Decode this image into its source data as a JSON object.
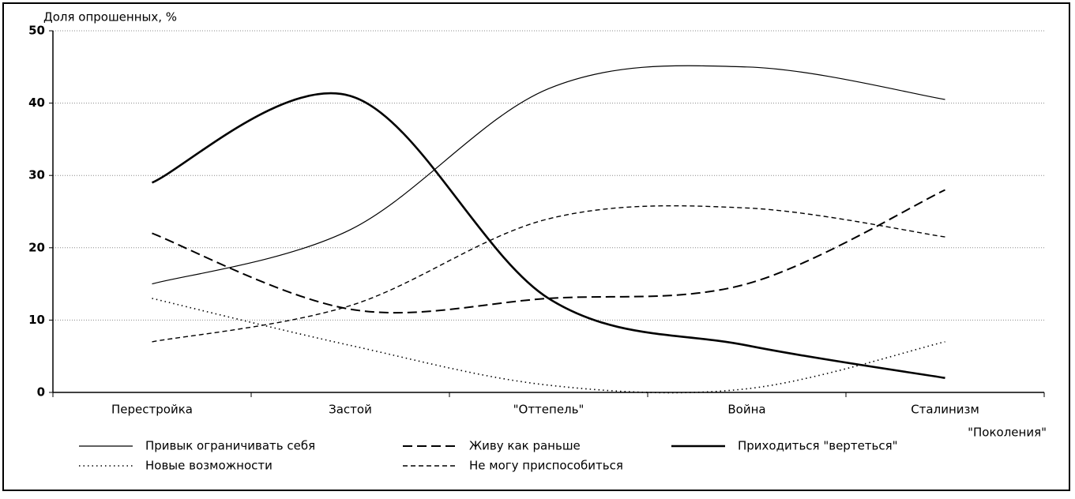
{
  "chart_data": {
    "type": "line",
    "ylabel": "Доля опрошенных, %",
    "xlabel": "\"Поколения\"",
    "categories": [
      "Перестройка",
      "Застой",
      "\"Оттепель\"",
      "Война",
      "Сталинизм"
    ],
    "ylim": [
      0,
      50
    ],
    "yticks": [
      0,
      10,
      20,
      30,
      40,
      50
    ],
    "grid": true,
    "series": [
      {
        "name": "Привык ограничивать себя",
        "color": "#000000",
        "line_style": "solid",
        "values": [
          15,
          22.5,
          42,
          45,
          40.5
        ]
      },
      {
        "name": "Живу как раньше",
        "color": "#000000",
        "line_style": "long-dash",
        "values": [
          22,
          11.5,
          13,
          15,
          28
        ]
      },
      {
        "name": "Приходиться \"вертеться\"",
        "color": "#000000",
        "line_style": "thick",
        "values": [
          29,
          41,
          13,
          6.5,
          2
        ]
      },
      {
        "name": "Новые возможности",
        "color": "#000000",
        "line_style": "dotted",
        "values": [
          13,
          6.5,
          1,
          0.5,
          7
        ]
      },
      {
        "name": "Не могу приспособиться",
        "color": "#000000",
        "line_style": "dash",
        "values": [
          7,
          12,
          24,
          25.5,
          21.5
        ]
      }
    ]
  }
}
